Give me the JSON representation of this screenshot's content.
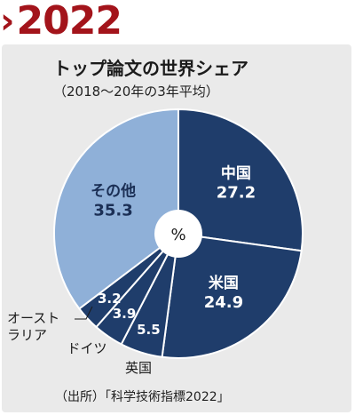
{
  "header": {
    "chevron": "›",
    "year": "2022"
  },
  "caption": {
    "title": "トップ論文の世界シェア",
    "subtitle": "（2018～20年の3年平均）",
    "source": "（出所）「科学技術指標2022」"
  },
  "chart_data": {
    "type": "pie",
    "center_label": "%",
    "slices": [
      {
        "name": "中国",
        "value": 27.2,
        "color": "#1f3d6b",
        "label_color": "#ffffff"
      },
      {
        "name": "米国",
        "value": 24.9,
        "color": "#1f3d6b",
        "label_color": "#ffffff"
      },
      {
        "name": "英国",
        "value": 5.5,
        "color": "#1f3d6b",
        "label_color": "#ffffff"
      },
      {
        "name": "ドイツ",
        "value": 3.9,
        "color": "#1f3d6b",
        "label_color": "#ffffff"
      },
      {
        "name": "オーストラリア",
        "value": 3.2,
        "color": "#1f3d6b",
        "label_color": "#ffffff"
      },
      {
        "name": "その他",
        "value": 35.3,
        "color": "#8fb0d8",
        "label_color": "#1b2f55"
      }
    ],
    "external_name_lines": {
      "オーストラリア": [
        "オースト",
        "ラリア"
      ]
    }
  }
}
